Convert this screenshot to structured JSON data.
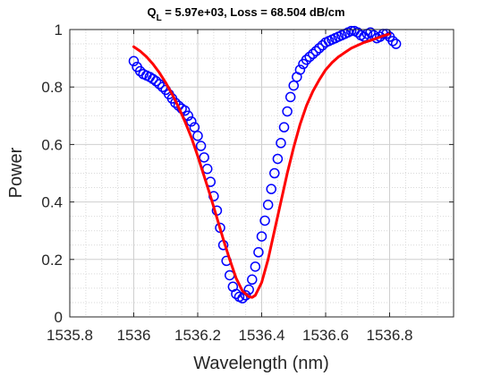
{
  "chart_data": {
    "type": "scatter",
    "title_main": "Q",
    "title_sub": "L",
    "title_rest": " = 5.97e+03,   Loss = 68.504 dB/cm",
    "xlabel": "Wavelength (nm)",
    "ylabel": "Power",
    "xlim": [
      1535.8,
      1537.0
    ],
    "ylim": [
      0,
      1
    ],
    "xticks": [
      1535.8,
      1536.0,
      1536.2,
      1536.4,
      1536.6,
      1536.8
    ],
    "xtick_labels": [
      "1535.8",
      "1536",
      "1536.2",
      "1536.4",
      "1536.6",
      "1536.8"
    ],
    "yticks": [
      0,
      0.2,
      0.4,
      0.6,
      0.8,
      1
    ],
    "ytick_labels": [
      "0",
      "0.2",
      "0.4",
      "0.6",
      "0.8",
      "1"
    ],
    "grid": true,
    "minor_grid": true,
    "colors": {
      "measured": "#0000ff",
      "fit": "#ff0000",
      "grid": "#d9d9d9",
      "axis": "#262626"
    },
    "series": [
      {
        "kind": "scatter",
        "marker": "circle",
        "x": [
          1536.0,
          1536.01,
          1536.02,
          1536.03,
          1536.04,
          1536.05,
          1536.06,
          1536.07,
          1536.08,
          1536.09,
          1536.1,
          1536.11,
          1536.12,
          1536.13,
          1536.14,
          1536.15,
          1536.16,
          1536.17,
          1536.18,
          1536.19,
          1536.2,
          1536.21,
          1536.22,
          1536.23,
          1536.24,
          1536.25,
          1536.26,
          1536.27,
          1536.28,
          1536.29,
          1536.3,
          1536.31,
          1536.32,
          1536.33,
          1536.34,
          1536.35,
          1536.36,
          1536.37,
          1536.38,
          1536.39,
          1536.4,
          1536.41,
          1536.42,
          1536.43,
          1536.44,
          1536.45,
          1536.46,
          1536.47,
          1536.48,
          1536.49,
          1536.5,
          1536.51,
          1536.52,
          1536.53,
          1536.54,
          1536.55,
          1536.56,
          1536.57,
          1536.58,
          1536.59,
          1536.6,
          1536.61,
          1536.62,
          1536.63,
          1536.64,
          1536.65,
          1536.66,
          1536.67,
          1536.68,
          1536.69,
          1536.7,
          1536.71,
          1536.72,
          1536.73,
          1536.74,
          1536.75,
          1536.76,
          1536.77,
          1536.78,
          1536.79,
          1536.8,
          1536.81,
          1536.82
        ],
        "y": [
          0.89,
          0.87,
          0.855,
          0.845,
          0.84,
          0.835,
          0.828,
          0.82,
          0.81,
          0.8,
          0.79,
          0.775,
          0.76,
          0.745,
          0.735,
          0.725,
          0.718,
          0.7,
          0.68,
          0.66,
          0.63,
          0.595,
          0.555,
          0.515,
          0.47,
          0.42,
          0.37,
          0.31,
          0.25,
          0.195,
          0.145,
          0.105,
          0.08,
          0.07,
          0.065,
          0.075,
          0.095,
          0.13,
          0.175,
          0.225,
          0.28,
          0.335,
          0.39,
          0.445,
          0.5,
          0.55,
          0.605,
          0.66,
          0.715,
          0.765,
          0.805,
          0.835,
          0.86,
          0.88,
          0.895,
          0.905,
          0.915,
          0.925,
          0.935,
          0.945,
          0.955,
          0.96,
          0.965,
          0.97,
          0.975,
          0.98,
          0.985,
          0.99,
          0.995,
          0.995,
          0.99,
          0.98,
          0.975,
          0.985,
          0.99,
          0.98,
          0.97,
          0.975,
          0.985,
          0.985,
          0.975,
          0.96,
          0.95
        ]
      },
      {
        "kind": "line",
        "x": [
          1536.0,
          1536.02,
          1536.04,
          1536.06,
          1536.08,
          1536.1,
          1536.12,
          1536.14,
          1536.16,
          1536.18,
          1536.2,
          1536.22,
          1536.24,
          1536.26,
          1536.28,
          1536.3,
          1536.32,
          1536.34,
          1536.36,
          1536.37,
          1536.38,
          1536.4,
          1536.42,
          1536.44,
          1536.46,
          1536.48,
          1536.5,
          1536.52,
          1536.54,
          1536.56,
          1536.58,
          1536.6,
          1536.62,
          1536.64,
          1536.66,
          1536.68,
          1536.7,
          1536.72,
          1536.74,
          1536.76,
          1536.78,
          1536.8
        ],
        "y": [
          0.94,
          0.925,
          0.905,
          0.88,
          0.85,
          0.815,
          0.775,
          0.73,
          0.68,
          0.625,
          0.56,
          0.49,
          0.42,
          0.345,
          0.27,
          0.2,
          0.135,
          0.09,
          0.07,
          0.068,
          0.075,
          0.12,
          0.2,
          0.3,
          0.4,
          0.5,
          0.59,
          0.67,
          0.735,
          0.785,
          0.825,
          0.86,
          0.885,
          0.905,
          0.92,
          0.935,
          0.945,
          0.955,
          0.962,
          0.97,
          0.978,
          0.985
        ]
      }
    ]
  }
}
